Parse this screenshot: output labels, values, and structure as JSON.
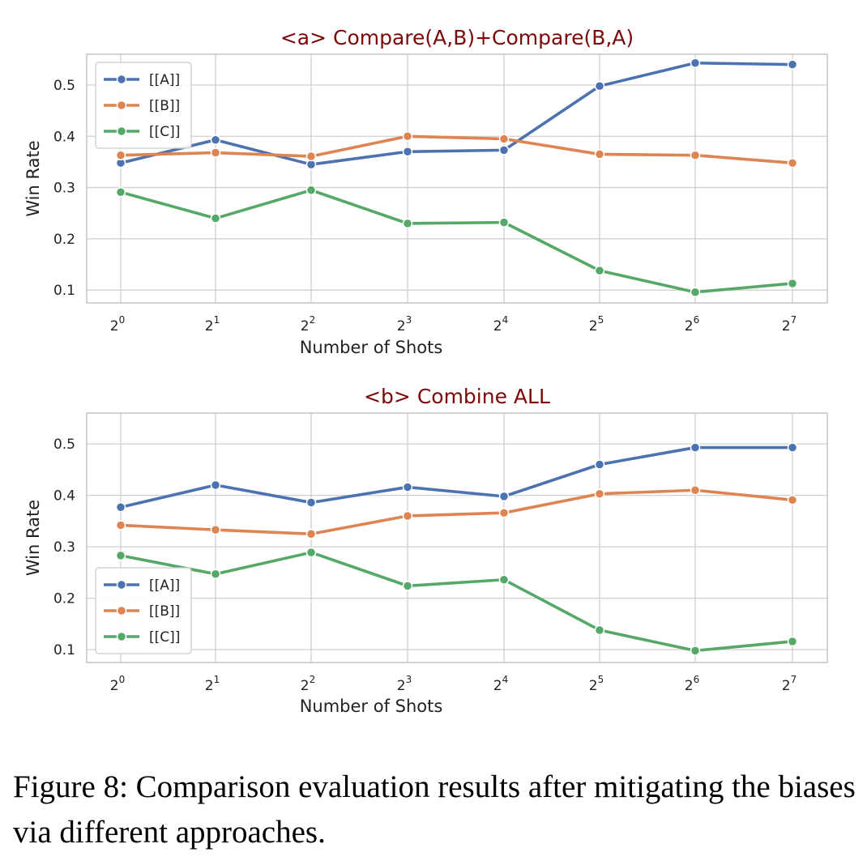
{
  "chart_data": [
    {
      "type": "line",
      "title": "<a> Compare(A,B)+Compare(B,A)",
      "xlabel": "Number of Shots",
      "ylabel": "Win Rate",
      "categories": [
        "2^0",
        "2^1",
        "2^2",
        "2^3",
        "2^4",
        "2^5",
        "2^6",
        "2^7"
      ],
      "tick_base": "2",
      "tick_exponents": [
        "0",
        "1",
        "2",
        "3",
        "4",
        "5",
        "6",
        "7"
      ],
      "yticks": [
        "0.1",
        "0.2",
        "0.3",
        "0.4",
        "0.5"
      ],
      "ylim": [
        0.075,
        0.56
      ],
      "grid": true,
      "legend_position": "top-left",
      "series": [
        {
          "name": "[[A]]",
          "color": "#4c72b0",
          "values": [
            0.348,
            0.393,
            0.345,
            0.37,
            0.373,
            0.498,
            0.543,
            0.54
          ]
        },
        {
          "name": "[[B]]",
          "color": "#dd8452",
          "values": [
            0.363,
            0.368,
            0.361,
            0.4,
            0.395,
            0.365,
            0.363,
            0.348
          ]
        },
        {
          "name": "[[C]]",
          "color": "#55a868",
          "values": [
            0.291,
            0.24,
            0.295,
            0.23,
            0.232,
            0.138,
            0.096,
            0.113
          ]
        }
      ]
    },
    {
      "type": "line",
      "title": "<b> Combine ALL",
      "xlabel": "Number of Shots",
      "ylabel": "Win Rate",
      "categories": [
        "2^0",
        "2^1",
        "2^2",
        "2^3",
        "2^4",
        "2^5",
        "2^6",
        "2^7"
      ],
      "tick_base": "2",
      "tick_exponents": [
        "0",
        "1",
        "2",
        "3",
        "4",
        "5",
        "6",
        "7"
      ],
      "yticks": [
        "0.1",
        "0.2",
        "0.3",
        "0.4",
        "0.5"
      ],
      "ylim": [
        0.075,
        0.56
      ],
      "grid": true,
      "legend_position": "bottom-left",
      "series": [
        {
          "name": "[[A]]",
          "color": "#4c72b0",
          "values": [
            0.377,
            0.42,
            0.386,
            0.416,
            0.398,
            0.46,
            0.493,
            0.493
          ]
        },
        {
          "name": "[[B]]",
          "color": "#dd8452",
          "values": [
            0.342,
            0.333,
            0.325,
            0.36,
            0.366,
            0.403,
            0.41,
            0.391
          ]
        },
        {
          "name": "[[C]]",
          "color": "#55a868",
          "values": [
            0.283,
            0.247,
            0.289,
            0.224,
            0.236,
            0.138,
            0.098,
            0.116
          ]
        }
      ]
    }
  ],
  "caption": "Figure 8: Comparison evaluation results after mitigating the biases via different approaches."
}
